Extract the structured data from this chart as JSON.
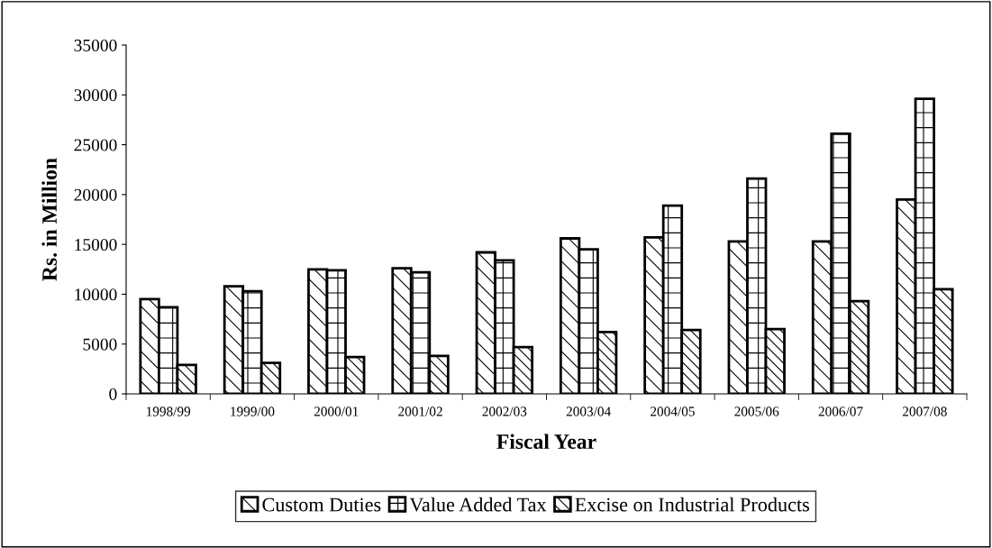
{
  "chart_data": {
    "type": "bar",
    "xlabel": "Fiscal Year",
    "ylabel": "Rs. in Million",
    "categories": [
      "1998/99",
      "1999/00",
      "2000/01",
      "2001/02",
      "2002/03",
      "2003/04",
      "2004/05",
      "2005/06",
      "2006/07",
      "2007/08"
    ],
    "series": [
      {
        "name": "Custom Duties",
        "color": "#000000",
        "values": [
          9500,
          10800,
          12500,
          12600,
          14200,
          15600,
          15700,
          15300,
          15300,
          19500
        ]
      },
      {
        "name": "Value Added Tax",
        "color": "#000000",
        "values": [
          8700,
          10300,
          12400,
          12200,
          13400,
          14500,
          18900,
          21600,
          26100,
          29600
        ]
      },
      {
        "name": "Excise on Industrial Products",
        "color": "#000000",
        "values": [
          2900,
          3100,
          3700,
          3800,
          4700,
          6200,
          6400,
          6500,
          9300,
          10500
        ]
      }
    ],
    "ylim": [
      0,
      35000
    ],
    "yticks": [
      0,
      5000,
      10000,
      15000,
      20000,
      25000,
      30000,
      35000
    ],
    "grid": false,
    "legend": "bottom"
  }
}
